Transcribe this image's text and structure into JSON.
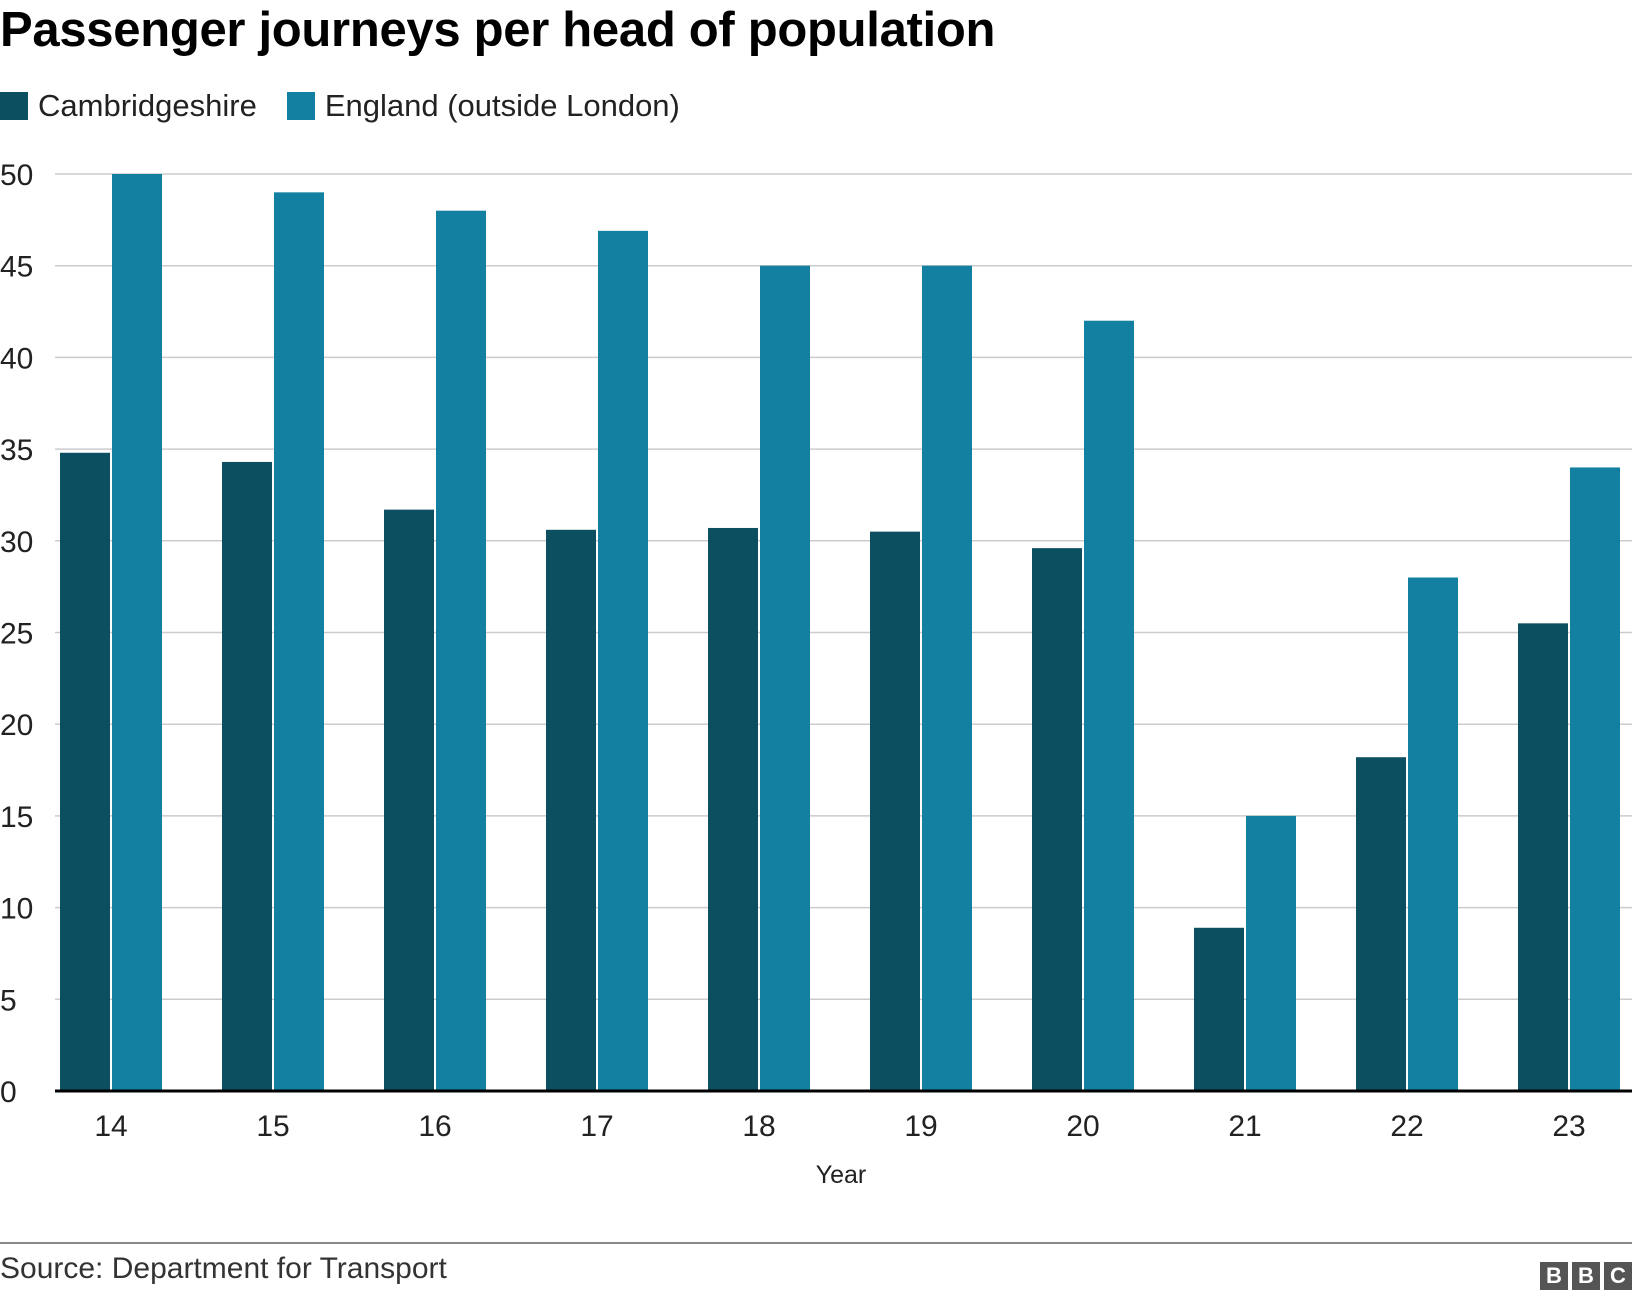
{
  "title": "Passenger journeys per head of population",
  "source": "Source: Department for Transport",
  "logo": [
    "B",
    "B",
    "C"
  ],
  "colors": {
    "cambridgeshire": "#0b4f60",
    "england": "#1380a1",
    "grid": "#cccccc",
    "axis": "#000000"
  },
  "chart_data": {
    "type": "bar",
    "title": "Passenger journeys per head of population",
    "xlabel": "Year",
    "ylabel": "",
    "categories": [
      "14",
      "15",
      "16",
      "17",
      "18",
      "19",
      "20",
      "21",
      "22",
      "23"
    ],
    "series": [
      {
        "name": "Cambridgeshire",
        "color": "#0b4f60",
        "values": [
          34.8,
          34.3,
          31.7,
          30.6,
          30.7,
          30.5,
          29.6,
          8.9,
          18.2,
          25.5
        ]
      },
      {
        "name": "England (outside London)",
        "color": "#1380a1",
        "values": [
          50,
          49,
          48,
          46.9,
          45,
          45,
          42,
          15,
          28,
          34
        ]
      }
    ],
    "ylim": [
      0,
      50
    ],
    "yticks": [
      0,
      5,
      10,
      15,
      20,
      25,
      30,
      35,
      40,
      45,
      50
    ],
    "grid": true,
    "legend_position": "top-left"
  }
}
